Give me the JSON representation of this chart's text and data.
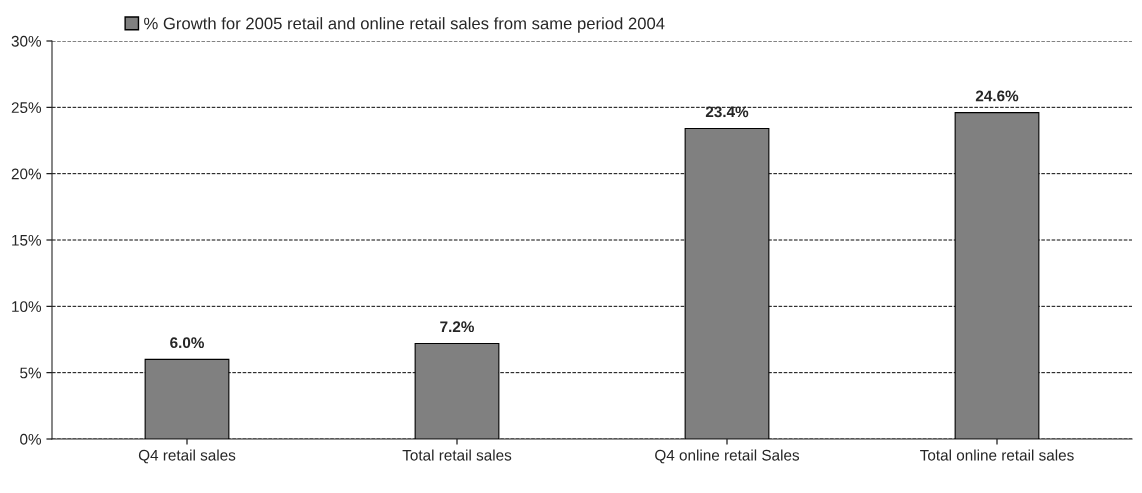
{
  "chart_data": {
    "type": "bar",
    "categories": [
      "Q4 retail sales",
      "Total retail sales",
      "Q4 online retail Sales",
      "Total online retail sales"
    ],
    "series": [
      {
        "name": "% Growth for 2005 retail and online retail sales from same period 2004",
        "color": "#808080",
        "values": [
          6.0,
          7.2,
          23.4,
          24.6
        ]
      }
    ],
    "value_labels": [
      "6.0%",
      "7.2%",
      "23.4%",
      "24.6%"
    ],
    "ylim": [
      0,
      30
    ],
    "yticks": [
      {
        "value": 0,
        "label": "0%"
      },
      {
        "value": 5,
        "label": "5%"
      },
      {
        "value": 10,
        "label": "10%"
      },
      {
        "value": 15,
        "label": "15%"
      },
      {
        "value": 20,
        "label": "20%"
      },
      {
        "value": 25,
        "label": "25%"
      },
      {
        "value": 30,
        "label": "30%"
      }
    ],
    "grid": "y",
    "line_style": "dashed",
    "legend": "top left"
  }
}
